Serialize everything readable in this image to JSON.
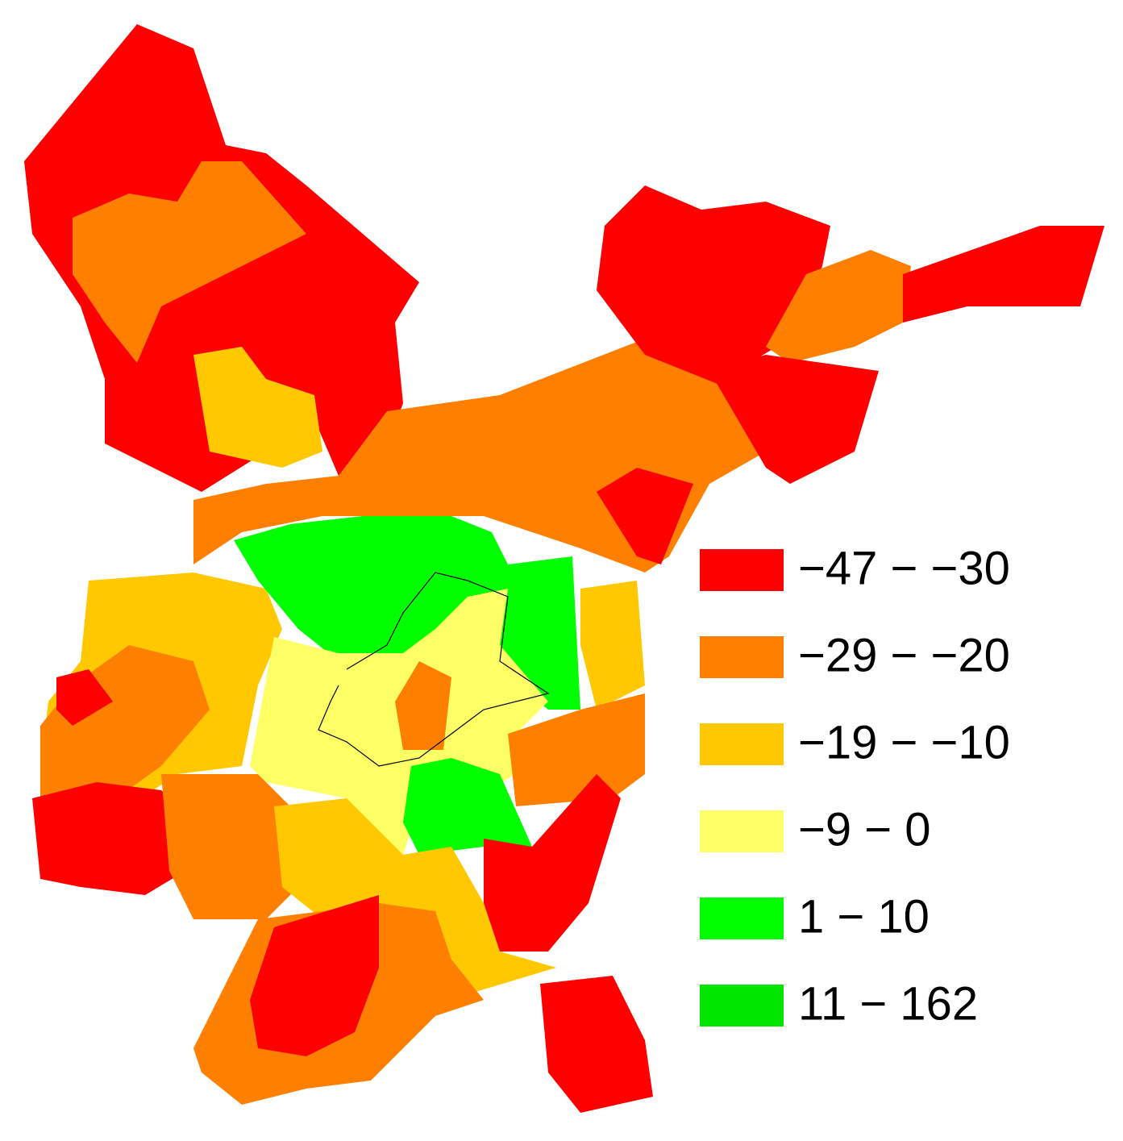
{
  "legend": [
    {
      "label": "−47 − −30",
      "color": "#ff0000"
    },
    {
      "label": "−29 − −20",
      "color": "#ff7f00"
    },
    {
      "label": "−19 − −10",
      "color": "#ffc800"
    },
    {
      "label": "−9 − 0",
      "color": "#ffff66"
    },
    {
      "label": "1 − 10",
      "color": "#00ff00"
    },
    {
      "label": "11 − 162",
      "color": "#00e600"
    }
  ]
}
